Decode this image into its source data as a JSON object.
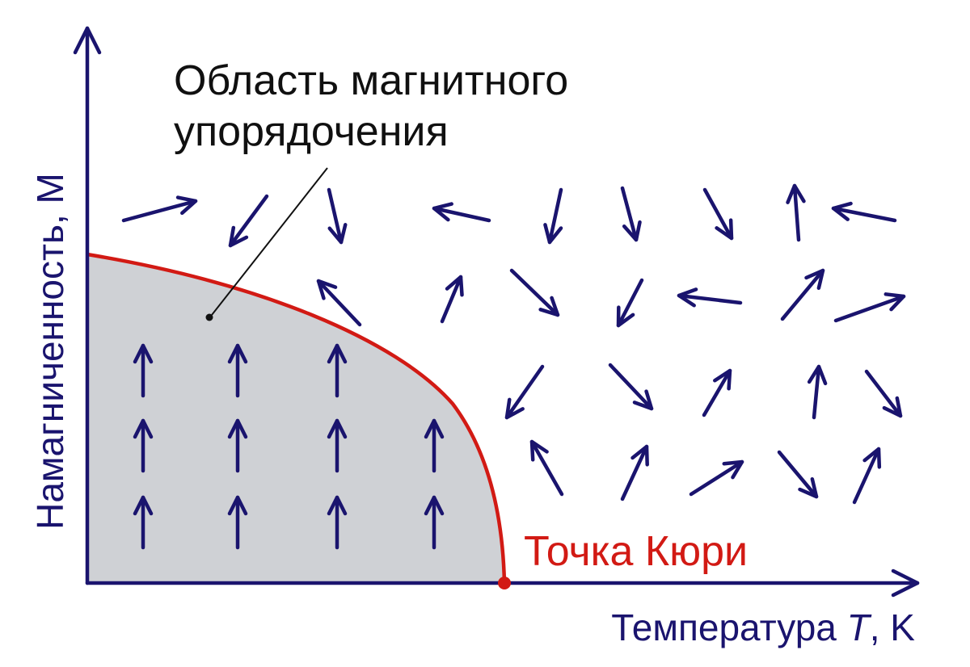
{
  "diagram": {
    "region_label_line1": "Область магнитного",
    "region_label_line2": "упорядочения",
    "y_axis_label": "Намагниченность, M",
    "x_axis_label_prefix": "Температура ",
    "x_axis_label_symbol": "T",
    "x_axis_label_suffix": ", K",
    "curie_label": "Точка Кюри"
  },
  "colors": {
    "arrows_axes": "#1a146e",
    "curve": "#d21a14",
    "region_fill": "#cfd1d5",
    "text": "#101010"
  },
  "icons": {
    "ordered_spin": "arrow-up",
    "disordered_spin": "arrow-random-direction",
    "curie_point": "red-dot"
  }
}
